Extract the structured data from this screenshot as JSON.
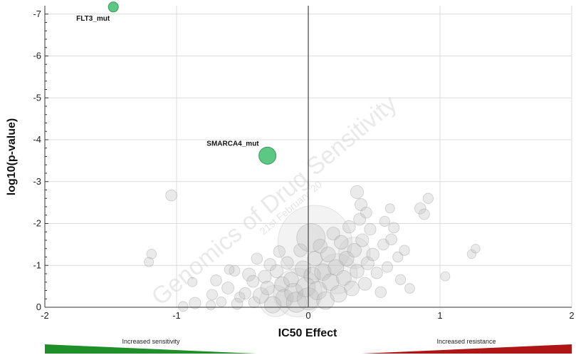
{
  "chart_data": {
    "type": "scatter",
    "title": "",
    "xlabel": "IC50 Effect",
    "ylabel": "log10(p-value)",
    "xlim": [
      -2,
      2
    ],
    "ylim": [
      0,
      -7.2
    ],
    "x_ticks": [
      "-2",
      "-1",
      "0",
      "1",
      "2"
    ],
    "y_ticks": [
      "0",
      "-1",
      "-2",
      "-3",
      "-4",
      "-5",
      "-6",
      "-7"
    ],
    "grid": true,
    "colors": {
      "significant": "#5dc784",
      "significant_stroke": "#3a9a5c",
      "background_point": "#bdbdbd",
      "sensitivity": "#1f8f2a",
      "resistance": "#b01515"
    },
    "highlighted_points": [
      {
        "label": "FLT3_mut",
        "x": -1.48,
        "y": -7.17,
        "size": 1
      },
      {
        "label": "SMARCA4_mut",
        "x": -0.31,
        "y": -3.62,
        "size": 2
      }
    ],
    "background_points": [
      {
        "x": -1.04,
        "y": -2.67,
        "size": 1.2
      },
      {
        "x": -1.19,
        "y": -1.27,
        "size": 0.9
      },
      {
        "x": -1.21,
        "y": -1.08,
        "size": 0.8
      },
      {
        "x": -0.86,
        "y": -0.1,
        "size": 1.3
      },
      {
        "x": -0.73,
        "y": -0.3,
        "size": 1.1
      },
      {
        "x": -0.7,
        "y": -0.64,
        "size": 1.2
      },
      {
        "x": -0.74,
        "y": -0.05,
        "size": 0.8
      },
      {
        "x": -0.61,
        "y": -0.46,
        "size": 1.4
      },
      {
        "x": -0.56,
        "y": -0.87,
        "size": 1.1
      },
      {
        "x": -0.66,
        "y": -0.13,
        "size": 0.9
      },
      {
        "x": -0.54,
        "y": -0.08,
        "size": 1.2
      },
      {
        "x": -0.52,
        "y": -0.24,
        "size": 1.0
      },
      {
        "x": -0.48,
        "y": -0.33,
        "size": 1.3
      },
      {
        "x": -0.45,
        "y": -0.78,
        "size": 1.6
      },
      {
        "x": -0.42,
        "y": -0.62,
        "size": 1.4
      },
      {
        "x": -0.41,
        "y": -0.12,
        "size": 1.2
      },
      {
        "x": -0.39,
        "y": -1.16,
        "size": 1.2
      },
      {
        "x": -0.36,
        "y": -0.28,
        "size": 2.2
      },
      {
        "x": -0.33,
        "y": -0.73,
        "size": 1.6
      },
      {
        "x": -0.31,
        "y": -0.46,
        "size": 1.8
      },
      {
        "x": -0.29,
        "y": -1.02,
        "size": 1.4
      },
      {
        "x": -0.27,
        "y": -0.06,
        "size": 2.4
      },
      {
        "x": -0.24,
        "y": -0.86,
        "size": 1.6
      },
      {
        "x": -0.22,
        "y": -1.33,
        "size": 1.3
      },
      {
        "x": -0.2,
        "y": -0.55,
        "size": 2.0
      },
      {
        "x": -0.18,
        "y": -0.22,
        "size": 2.6
      },
      {
        "x": -0.16,
        "y": -1.06,
        "size": 1.5
      },
      {
        "x": -0.13,
        "y": -0.66,
        "size": 2.0
      },
      {
        "x": -0.11,
        "y": -0.35,
        "size": 2.8
      },
      {
        "x": -0.09,
        "y": -0.12,
        "size": 3.2
      },
      {
        "x": -0.06,
        "y": -1.36,
        "size": 1.6
      },
      {
        "x": -0.04,
        "y": -0.92,
        "size": 2.2
      },
      {
        "x": -0.02,
        "y": -0.48,
        "size": 3.0
      },
      {
        "x": 0.0,
        "y": -0.2,
        "size": 3.6
      },
      {
        "x": 0.02,
        "y": -1.66,
        "size": 5.0
      },
      {
        "x": 0.03,
        "y": -0.76,
        "size": 2.4
      },
      {
        "x": 0.05,
        "y": -1.16,
        "size": 2.0
      },
      {
        "x": 0.07,
        "y": -0.4,
        "size": 2.8
      },
      {
        "x": 0.09,
        "y": -1.46,
        "size": 1.8
      },
      {
        "x": 0.11,
        "y": -0.84,
        "size": 2.4
      },
      {
        "x": 0.13,
        "y": -0.16,
        "size": 2.6
      },
      {
        "x": 0.15,
        "y": -1.26,
        "size": 2.0
      },
      {
        "x": 0.17,
        "y": -0.6,
        "size": 2.4
      },
      {
        "x": 0.19,
        "y": -1.76,
        "size": 1.6
      },
      {
        "x": 0.21,
        "y": -0.95,
        "size": 2.2
      },
      {
        "x": 0.23,
        "y": -0.32,
        "size": 2.4
      },
      {
        "x": 0.25,
        "y": -1.55,
        "size": 1.8
      },
      {
        "x": 0.27,
        "y": -0.7,
        "size": 2.0
      },
      {
        "x": 0.29,
        "y": -1.16,
        "size": 2.0
      },
      {
        "x": 0.31,
        "y": -1.92,
        "size": 1.5
      },
      {
        "x": 0.33,
        "y": -0.45,
        "size": 2.0
      },
      {
        "x": 0.35,
        "y": -1.36,
        "size": 1.8
      },
      {
        "x": 0.37,
        "y": -0.86,
        "size": 1.8
      },
      {
        "x": 0.39,
        "y": -2.1,
        "size": 1.4
      },
      {
        "x": 0.41,
        "y": -1.6,
        "size": 1.6
      },
      {
        "x": 0.43,
        "y": -0.56,
        "size": 1.6
      },
      {
        "x": 0.45,
        "y": -1.05,
        "size": 1.6
      },
      {
        "x": 0.4,
        "y": -2.45,
        "size": 1.4
      },
      {
        "x": 0.44,
        "y": -2.26,
        "size": 1.2
      },
      {
        "x": 0.37,
        "y": -2.75,
        "size": 1.6
      },
      {
        "x": 0.47,
        "y": -1.86,
        "size": 1.3
      },
      {
        "x": 0.49,
        "y": -1.26,
        "size": 1.5
      },
      {
        "x": 0.52,
        "y": -0.82,
        "size": 1.3
      },
      {
        "x": 0.55,
        "y": -0.36,
        "size": 1.2
      },
      {
        "x": 0.57,
        "y": -1.5,
        "size": 1.2
      },
      {
        "x": 0.6,
        "y": -0.96,
        "size": 1.1
      },
      {
        "x": 0.63,
        "y": -1.62,
        "size": 1.2
      },
      {
        "x": 0.65,
        "y": -1.9,
        "size": 1.1
      },
      {
        "x": 0.68,
        "y": -1.2,
        "size": 1.0
      },
      {
        "x": 0.7,
        "y": -0.66,
        "size": 1.0
      },
      {
        "x": 0.73,
        "y": -1.36,
        "size": 1.0
      },
      {
        "x": 0.77,
        "y": -0.45,
        "size": 0.9
      },
      {
        "x": 0.85,
        "y": -2.36,
        "size": 1.2
      },
      {
        "x": 0.88,
        "y": -2.22,
        "size": 1.1
      },
      {
        "x": 0.91,
        "y": -2.6,
        "size": 1.0
      },
      {
        "x": 1.04,
        "y": -0.74,
        "size": 0.8
      },
      {
        "x": 1.24,
        "y": -1.27,
        "size": 0.7
      },
      {
        "x": 1.27,
        "y": -1.4,
        "size": 0.7
      },
      {
        "x": -0.88,
        "y": -0.6,
        "size": 0.8
      },
      {
        "x": -0.95,
        "y": -0.02,
        "size": 0.9
      },
      {
        "x": -0.6,
        "y": -0.9,
        "size": 0.9
      },
      {
        "x": 0.58,
        "y": -2.05,
        "size": 1.0
      },
      {
        "x": 0.62,
        "y": -2.36,
        "size": 0.8
      }
    ],
    "legend": {
      "left_label": "Increased sensitivity",
      "right_label": "Increased resistance"
    },
    "watermark": {
      "main": "Genomics of Drug Sensitivity",
      "date": "21st February '20"
    }
  }
}
